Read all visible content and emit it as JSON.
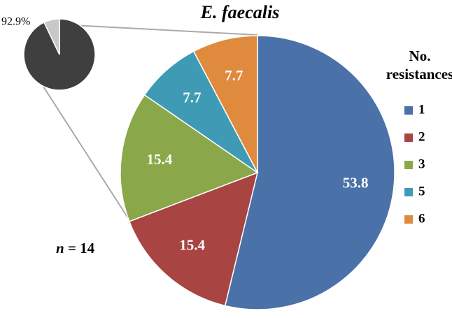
{
  "chart_data": [
    {
      "type": "pie",
      "title": "E. faecalis",
      "categories": [
        "1",
        "2",
        "3",
        "5",
        "6"
      ],
      "values": [
        53.8,
        15.4,
        15.4,
        7.7,
        7.7
      ],
      "colors": [
        "#4a72a8",
        "#a84442",
        "#8aa84a",
        "#3f9bb5",
        "#e08a3e"
      ],
      "legend_title": [
        "No.",
        "resistances"
      ],
      "legend": "right",
      "annotation": [
        "n",
        "= 14"
      ]
    },
    {
      "type": "pie",
      "values": [
        92.9,
        7.1
      ],
      "value_labels": [
        "92.9%",
        null
      ],
      "colors": [
        "#3f3f3f",
        "#c8c8c8"
      ]
    }
  ]
}
